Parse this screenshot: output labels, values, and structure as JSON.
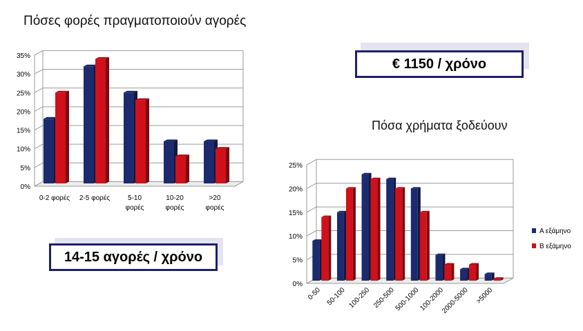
{
  "colors": {
    "series_a": "#1c2a6e",
    "series_b": "#d0101a",
    "grid": "#9a9a9a",
    "callout_border": "#1b1f6e"
  },
  "callouts": {
    "purchases": "14-15 αγορές / χρόνο",
    "spending": "€ 1150 / χρόνο"
  },
  "chart_data": [
    {
      "type": "bar",
      "title": "Πόσες φορές πραγματοποιούν αγορές",
      "categories": [
        [
          "0-2 φορές"
        ],
        [
          "2-5 φορές"
        ],
        [
          "5-10",
          "φορές"
        ],
        [
          "10-20",
          "φορές"
        ],
        [
          ">20",
          "φορές"
        ]
      ],
      "series": [
        {
          "name": "Α εξάμηνο",
          "values": [
            18,
            32,
            25,
            12,
            12
          ]
        },
        {
          "name": "Β εξάμηνο",
          "values": [
            25,
            34,
            23,
            8,
            10
          ]
        }
      ],
      "ylim": [
        0,
        35
      ],
      "yticks": [
        "0%",
        "5%",
        "10%",
        "15%",
        "20%",
        "25%",
        "30%",
        "35%"
      ],
      "grid": true,
      "legend": "right"
    },
    {
      "type": "bar",
      "title": "Πόσα χρήματα ξοδεύουν",
      "categories": [
        [
          "0-50"
        ],
        [
          "50-100"
        ],
        [
          "100-250"
        ],
        [
          "250-500"
        ],
        [
          "500-1000"
        ],
        [
          "100-2000"
        ],
        [
          "2000-5000"
        ],
        [
          ">5000"
        ]
      ],
      "series": [
        {
          "name": "Α εξάμηνο",
          "values": [
            9,
            15,
            23,
            22,
            20,
            6,
            3,
            2
          ]
        },
        {
          "name": "Β εξάμηνο",
          "values": [
            14,
            20,
            22,
            20,
            15,
            4,
            4,
            1
          ]
        }
      ],
      "ylim": [
        0,
        25
      ],
      "yticks": [
        "0%",
        "5%",
        "10%",
        "15%",
        "20%",
        "25%"
      ],
      "grid": true,
      "legend": "right"
    }
  ]
}
